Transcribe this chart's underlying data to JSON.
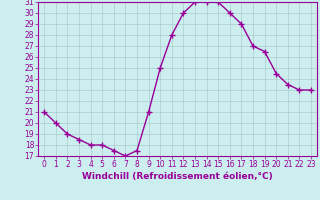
{
  "x": [
    0,
    1,
    2,
    3,
    4,
    5,
    6,
    7,
    8,
    9,
    10,
    11,
    12,
    13,
    14,
    15,
    16,
    17,
    18,
    19,
    20,
    21,
    22,
    23
  ],
  "y": [
    21.0,
    20.0,
    19.0,
    18.5,
    18.0,
    18.0,
    17.5,
    17.0,
    17.5,
    21.0,
    25.0,
    28.0,
    30.0,
    31.0,
    31.0,
    31.0,
    30.0,
    29.0,
    27.0,
    26.5,
    24.5,
    23.5,
    23.0,
    23.0
  ],
  "ylim": [
    17,
    31
  ],
  "yticks": [
    17,
    18,
    19,
    20,
    21,
    22,
    23,
    24,
    25,
    26,
    27,
    28,
    29,
    30,
    31
  ],
  "xlim": [
    -0.5,
    23.5
  ],
  "xticks": [
    0,
    1,
    2,
    3,
    4,
    5,
    6,
    7,
    8,
    9,
    10,
    11,
    12,
    13,
    14,
    15,
    16,
    17,
    18,
    19,
    20,
    21,
    22,
    23
  ],
  "line_color": "#990099",
  "marker": "+",
  "bg_color": "#cceeee",
  "grid_color": "#aacccc",
  "xlabel": "Windchill (Refroidissement éolien,°C)",
  "xlabel_color": "#990099",
  "tick_color": "#990099",
  "line_width": 1.0,
  "marker_size": 4,
  "marker_edge_width": 1.0,
  "font_size_ticks": 5.5,
  "font_size_xlabel": 6.5
}
